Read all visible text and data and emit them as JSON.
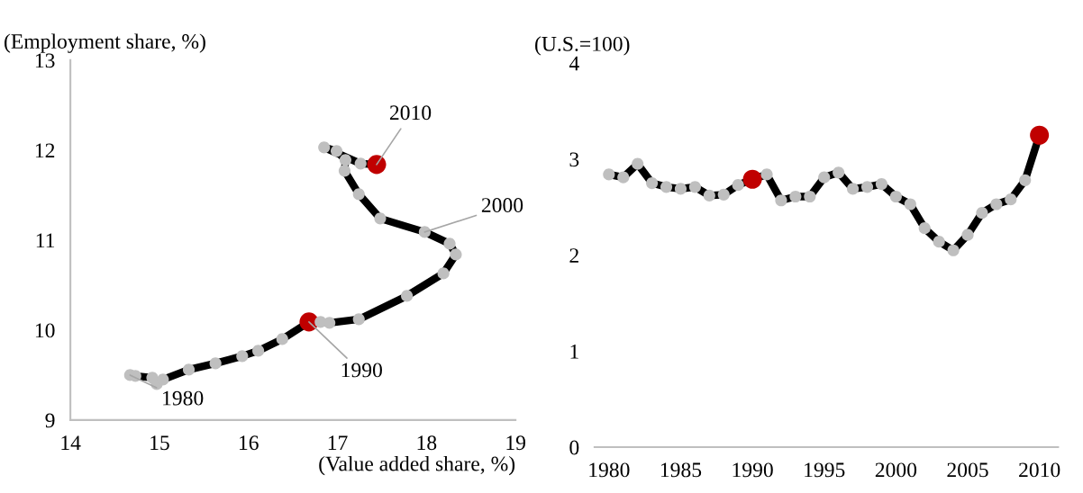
{
  "chart_data": [
    {
      "type": "line",
      "xlabel": "(Value added share, %)",
      "ylabel": "(Employment share, %)",
      "xlim": [
        14,
        19
      ],
      "xticks": [
        14,
        15,
        16,
        17,
        18,
        19
      ],
      "ylim": [
        9,
        13
      ],
      "yticks": [
        9,
        10,
        11,
        12,
        13
      ],
      "grid": false,
      "legend": false,
      "marker": "circle",
      "line_style": "solid",
      "series": [
        {
          "color": "#000000",
          "x": [
            14.67,
            14.73,
            14.92,
            14.97,
            15.04,
            15.33,
            15.63,
            15.93,
            16.11,
            16.38,
            16.68,
            16.81,
            16.91,
            17.24,
            17.78,
            18.19,
            18.33,
            18.26,
            17.98,
            17.48,
            17.24,
            17.08,
            17.09,
            16.99,
            16.85,
            17.26,
            17.44
          ],
          "values": [
            9.5,
            9.49,
            9.47,
            9.4,
            9.45,
            9.56,
            9.63,
            9.71,
            9.77,
            9.9,
            10.09,
            10.09,
            10.08,
            10.12,
            10.38,
            10.63,
            10.84,
            10.96,
            11.09,
            11.24,
            11.51,
            11.77,
            11.89,
            11.99,
            12.03,
            11.85,
            11.84
          ],
          "colors": [
            "#bfbfbf",
            "#bfbfbf",
            "#bfbfbf",
            "#bfbfbf",
            "#bfbfbf",
            "#bfbfbf",
            "#bfbfbf",
            "#bfbfbf",
            "#bfbfbf",
            "#bfbfbf",
            "#c00000",
            "#bfbfbf",
            "#bfbfbf",
            "#bfbfbf",
            "#bfbfbf",
            "#bfbfbf",
            "#bfbfbf",
            "#bfbfbf",
            "#bfbfbf",
            "#bfbfbf",
            "#bfbfbf",
            "#bfbfbf",
            "#bfbfbf",
            "#bfbfbf",
            "#bfbfbf",
            "#bfbfbf",
            "#c00000"
          ]
        }
      ],
      "annotations": [
        {
          "text": "1980",
          "x": 14.67,
          "y": 9.5
        },
        {
          "text": "1990",
          "x": 16.68,
          "y": 10.09
        },
        {
          "text": "2000",
          "x": 17.98,
          "y": 11.09
        },
        {
          "text": "2010",
          "x": 17.44,
          "y": 11.84
        }
      ]
    },
    {
      "type": "line",
      "ylabel": "(U.S.=100)",
      "xlim": [
        1979,
        2011.3
      ],
      "xticks": [
        1980,
        1985,
        1990,
        1995,
        2000,
        2005,
        2010
      ],
      "ylim": [
        0,
        4
      ],
      "yticks": [
        0,
        1,
        2,
        3,
        4
      ],
      "grid": false,
      "legend": false,
      "marker": "circle",
      "line_style": "solid",
      "series": [
        {
          "color": "#000000",
          "x": [
            1980,
            1981,
            1982,
            1983,
            1984,
            1985,
            1986,
            1987,
            1988,
            1989,
            1990,
            1991,
            1992,
            1993,
            1994,
            1995,
            1996,
            1997,
            1998,
            1999,
            2000,
            2001,
            2002,
            2003,
            2004,
            2005,
            2006,
            2007,
            2008,
            2009,
            2010
          ],
          "values": [
            2.84,
            2.81,
            2.95,
            2.75,
            2.71,
            2.69,
            2.71,
            2.62,
            2.63,
            2.73,
            2.79,
            2.84,
            2.57,
            2.61,
            2.61,
            2.81,
            2.86,
            2.69,
            2.71,
            2.74,
            2.61,
            2.53,
            2.28,
            2.14,
            2.05,
            2.21,
            2.44,
            2.53,
            2.58,
            2.78,
            3.25
          ],
          "colors": [
            "#bfbfbf",
            "#bfbfbf",
            "#bfbfbf",
            "#bfbfbf",
            "#bfbfbf",
            "#bfbfbf",
            "#bfbfbf",
            "#bfbfbf",
            "#bfbfbf",
            "#bfbfbf",
            "#c00000",
            "#bfbfbf",
            "#bfbfbf",
            "#bfbfbf",
            "#bfbfbf",
            "#bfbfbf",
            "#bfbfbf",
            "#bfbfbf",
            "#bfbfbf",
            "#bfbfbf",
            "#bfbfbf",
            "#bfbfbf",
            "#bfbfbf",
            "#bfbfbf",
            "#bfbfbf",
            "#bfbfbf",
            "#bfbfbf",
            "#bfbfbf",
            "#bfbfbf",
            "#bfbfbf",
            "#c00000"
          ]
        }
      ]
    }
  ]
}
